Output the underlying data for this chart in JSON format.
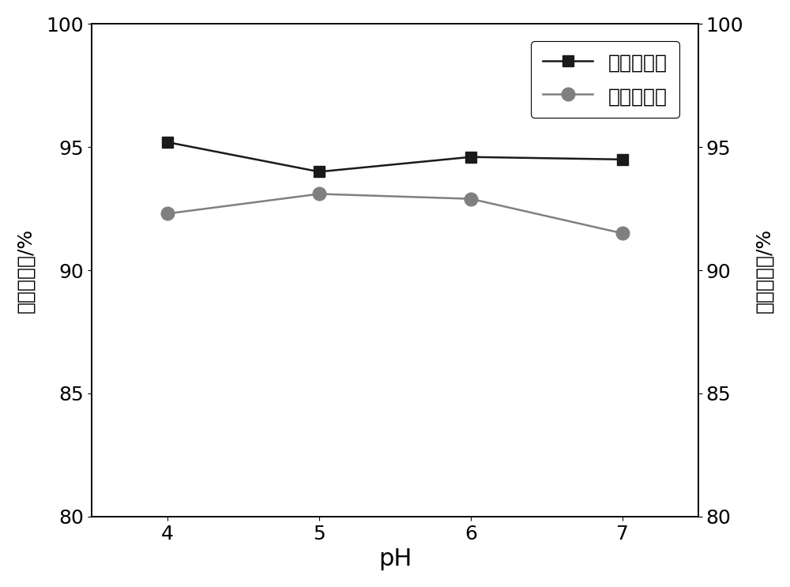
{
  "x": [
    4,
    5,
    6,
    7
  ],
  "decolor_rate": [
    95.2,
    94.0,
    94.6,
    94.5
  ],
  "retain_rate": [
    92.3,
    93.1,
    92.9,
    91.5
  ],
  "line1_color": "#1a1a1a",
  "line2_color": "#808080",
  "marker1": "s",
  "marker2": "o",
  "marker1_size": 10,
  "marker2_size": 12,
  "line_width": 1.8,
  "ylim_left": [
    80,
    100
  ],
  "ylim_right": [
    80,
    100
  ],
  "yticks": [
    80,
    85,
    90,
    95,
    100
  ],
  "xlabel": "pH",
  "ylabel_left": "多糖脱色率/%",
  "ylabel_right": "多糖保留率/%",
  "legend_labels": [
    "多糖脱色率",
    "多糖保留率"
  ],
  "tick_font_size": 18,
  "legend_font_size": 18,
  "xlabel_font_size": 22,
  "ylabel_font_size": 18
}
